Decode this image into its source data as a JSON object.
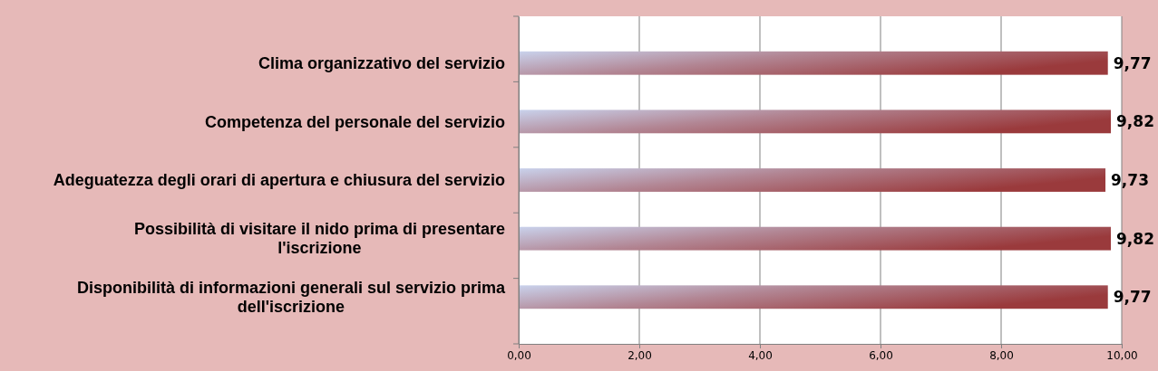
{
  "chart_data": {
    "type": "bar",
    "orientation": "horizontal",
    "categories": [
      "Clima organizzativo del servizio",
      "Competenza del personale del servizio",
      "Adeguatezza degli orari di apertura e chiusura del servizio",
      "Possibilità di visitare il nido prima di presentare l'iscrizione",
      "Disponibilità di informazioni generali sul servizio prima dell'iscrizione"
    ],
    "values": [
      9.77,
      9.82,
      9.73,
      9.82,
      9.77
    ],
    "value_labels": [
      "9,77",
      "9,82",
      "9,73",
      "9,82",
      "9,77"
    ],
    "color": "#9a3a3c",
    "xlim": [
      0,
      10
    ],
    "xticks": [
      {
        "value": 0,
        "label": "0,00"
      },
      {
        "value": 2,
        "label": "2,00"
      },
      {
        "value": 4,
        "label": "4,00"
      },
      {
        "value": 6,
        "label": "6,00"
      },
      {
        "value": 8,
        "label": "8,00"
      },
      {
        "value": 10,
        "label": "10,00"
      }
    ],
    "grid": "x"
  }
}
